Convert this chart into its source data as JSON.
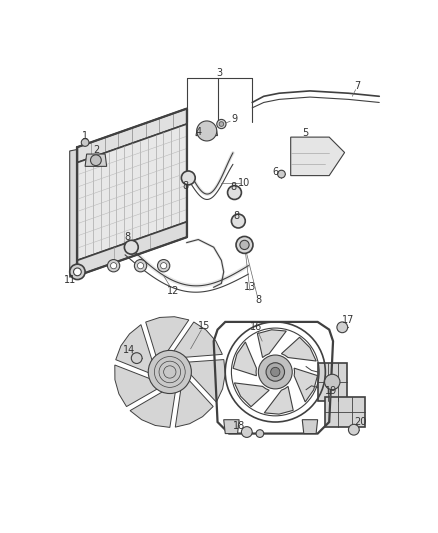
{
  "background_color": "#ffffff",
  "line_color": "#404040",
  "label_color": "#333333",
  "label_fontsize": 7.0,
  "fig_width": 4.38,
  "fig_height": 5.33,
  "dpi": 100
}
